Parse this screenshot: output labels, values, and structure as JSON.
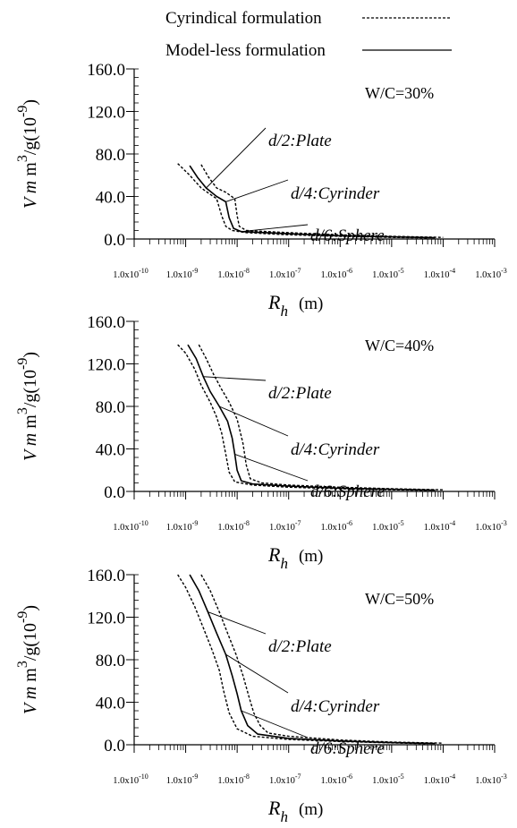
{
  "legend": [
    {
      "label": "Cyrindical formulation",
      "style": "dashed"
    },
    {
      "label": "Model-less formulation",
      "style": "solid"
    }
  ],
  "chart_data": [
    {
      "type": "line",
      "condition": "W/C=30%",
      "xlabel": "R_h (m)",
      "ylabel": "V m m^3/g(10^-9)",
      "xscale": "log",
      "xlim": [
        1e-10,
        0.001
      ],
      "ylim": [
        0,
        160
      ],
      "y_ticks": [
        "0.0",
        "40.0",
        "80.0",
        "120.0",
        "160.0"
      ],
      "x_ticks": [
        "1.0x10-10",
        "1.0x10-9",
        "1.0x10-8",
        "1.0x10-7",
        "1.0x10-6",
        "1.0x10-5",
        "1.0x10-4",
        "1.0x10-3"
      ],
      "annotations": [
        "d/2:Plate",
        "d/4:Cyrinder",
        "d/6:Sphere"
      ],
      "series": [
        {
          "style": "dashed",
          "points": [
            [
              7e-10,
              71
            ],
            [
              1.2e-09,
              60
            ],
            [
              2e-09,
              48
            ],
            [
              3e-09,
              42
            ],
            [
              4e-09,
              38
            ],
            [
              5e-09,
              22
            ],
            [
              6e-09,
              12
            ],
            [
              8e-09,
              8
            ],
            [
              1.5e-08,
              6
            ],
            [
              1e-07,
              4
            ],
            [
              1e-06,
              2.5
            ],
            [
              1e-05,
              1.5
            ],
            [
              5e-05,
              1
            ]
          ]
        },
        {
          "style": "solid",
          "points": [
            [
              1.2e-09,
              69
            ],
            [
              1.7e-09,
              58
            ],
            [
              2.5e-09,
              48
            ],
            [
              4e-09,
              40
            ],
            [
              6e-09,
              35
            ],
            [
              7e-09,
              20
            ],
            [
              8.5e-09,
              10
            ],
            [
              1.2e-08,
              7
            ],
            [
              1e-07,
              5
            ],
            [
              1e-06,
              3
            ],
            [
              1e-05,
              2
            ],
            [
              7e-05,
              1.2
            ]
          ]
        },
        {
          "style": "dashed",
          "points": [
            [
              2e-09,
              70
            ],
            [
              2.8e-09,
              58
            ],
            [
              4e-09,
              48
            ],
            [
              6e-09,
              44
            ],
            [
              9e-09,
              38
            ],
            [
              1e-08,
              22
            ],
            [
              1.1e-08,
              12
            ],
            [
              1.5e-08,
              8
            ],
            [
              1e-07,
              6
            ],
            [
              1e-06,
              4
            ],
            [
              1e-05,
              2.5
            ],
            [
              0.0001,
              1.5
            ]
          ]
        }
      ]
    },
    {
      "type": "line",
      "condition": "W/C=40%",
      "xlabel": "R_h (m)",
      "ylabel": "V m m^3/g(10^-9)",
      "xscale": "log",
      "xlim": [
        1e-10,
        0.001
      ],
      "ylim": [
        0,
        160
      ],
      "y_ticks": [
        "0.0",
        "40.0",
        "80.0",
        "120.0",
        "160.0"
      ],
      "x_ticks": [
        "1.0x10-10",
        "1.0x10-9",
        "1.0x10-8",
        "1.0x10-7",
        "1.0x10-6",
        "1.0x10-5",
        "1.0x10-4",
        "1.0x10-3"
      ],
      "annotations": [
        "d/2:Plate",
        "d/4:Cyrinder",
        "d/6:Sphere"
      ],
      "series": [
        {
          "style": "dashed",
          "points": [
            [
              7e-10,
              138
            ],
            [
              1e-09,
              130
            ],
            [
              1.5e-09,
              115
            ],
            [
              2e-09,
              100
            ],
            [
              3e-09,
              84
            ],
            [
              4e-09,
              70
            ],
            [
              5e-09,
              55
            ],
            [
              6e-09,
              35
            ],
            [
              7e-09,
              18
            ],
            [
              9e-09,
              9
            ],
            [
              2e-08,
              6
            ],
            [
              1e-07,
              4
            ],
            [
              1e-06,
              2.5
            ],
            [
              1e-05,
              1.5
            ],
            [
              5e-05,
              1
            ]
          ]
        },
        {
          "style": "solid",
          "points": [
            [
              1.1e-09,
              138
            ],
            [
              1.6e-09,
              125
            ],
            [
              2.2e-09,
              108
            ],
            [
              3e-09,
              94
            ],
            [
              4.5e-09,
              80
            ],
            [
              6.5e-09,
              66
            ],
            [
              8e-09,
              50
            ],
            [
              9e-09,
              35
            ],
            [
              1e-08,
              20
            ],
            [
              1.2e-08,
              10
            ],
            [
              2e-08,
              7
            ],
            [
              1e-07,
              5
            ],
            [
              1e-06,
              3
            ],
            [
              1e-05,
              2
            ],
            [
              7e-05,
              1.2
            ]
          ]
        },
        {
          "style": "dashed",
          "points": [
            [
              1.8e-09,
              138
            ],
            [
              2.5e-09,
              125
            ],
            [
              3.5e-09,
              110
            ],
            [
              5e-09,
              96
            ],
            [
              7e-09,
              84
            ],
            [
              1e-08,
              68
            ],
            [
              1.3e-08,
              45
            ],
            [
              1.5e-08,
              25
            ],
            [
              1.8e-08,
              12
            ],
            [
              3e-08,
              8
            ],
            [
              1e-07,
              6
            ],
            [
              1e-06,
              4
            ],
            [
              1e-05,
              2.5
            ],
            [
              0.0001,
              1.5
            ]
          ]
        }
      ]
    },
    {
      "type": "line",
      "condition": "W/C=50%",
      "xlabel": "R_h (m)",
      "ylabel": "V m m^3/g(10^-9)",
      "xscale": "log",
      "xlim": [
        1e-10,
        0.001
      ],
      "ylim": [
        0,
        160
      ],
      "y_ticks": [
        "0.0",
        "40.0",
        "80.0",
        "120.0",
        "160.0"
      ],
      "x_ticks": [
        "1.0x10-10",
        "1.0x10-9",
        "1.0x10-8",
        "1.0x10-7",
        "1.0x10-6",
        "1.0x10-5",
        "1.0x10-4",
        "1.0x10-3"
      ],
      "annotations": [
        "d/2:Plate",
        "d/4:Cyrinder",
        "d/6:Sphere"
      ],
      "series": [
        {
          "style": "dashed",
          "points": [
            [
              7e-10,
              160
            ],
            [
              1e-09,
              148
            ],
            [
              1.5e-09,
              130
            ],
            [
              2.2e-09,
              110
            ],
            [
              3.2e-09,
              90
            ],
            [
              4.5e-09,
              70
            ],
            [
              5.5e-09,
              50
            ],
            [
              7e-09,
              30
            ],
            [
              1e-08,
              15
            ],
            [
              2e-08,
              8
            ],
            [
              1e-07,
              5
            ],
            [
              1e-06,
              3
            ],
            [
              1e-05,
              1.8
            ],
            [
              5e-05,
              1
            ]
          ]
        },
        {
          "style": "solid",
          "points": [
            [
              1.2e-09,
              160
            ],
            [
              1.8e-09,
              145
            ],
            [
              2.7e-09,
              125
            ],
            [
              4e-09,
              105
            ],
            [
              6e-09,
              85
            ],
            [
              8e-09,
              65
            ],
            [
              1e-08,
              48
            ],
            [
              1.2e-08,
              32
            ],
            [
              1.6e-08,
              18
            ],
            [
              2.5e-08,
              10
            ],
            [
              1e-07,
              6
            ],
            [
              1e-06,
              3.5
            ],
            [
              1e-05,
              2
            ],
            [
              7e-05,
              1.2
            ]
          ]
        },
        {
          "style": "dashed",
          "points": [
            [
              2e-09,
              160
            ],
            [
              3e-09,
              145
            ],
            [
              4.5e-09,
              125
            ],
            [
              6.5e-09,
              105
            ],
            [
              9.5e-09,
              85
            ],
            [
              1.3e-08,
              65
            ],
            [
              1.7e-08,
              45
            ],
            [
              2.1e-08,
              30
            ],
            [
              2.8e-08,
              18
            ],
            [
              4e-08,
              11
            ],
            [
              1e-07,
              8
            ],
            [
              1e-06,
              4.5
            ],
            [
              1e-05,
              2.5
            ],
            [
              0.0001,
              1.5
            ]
          ]
        }
      ]
    }
  ]
}
